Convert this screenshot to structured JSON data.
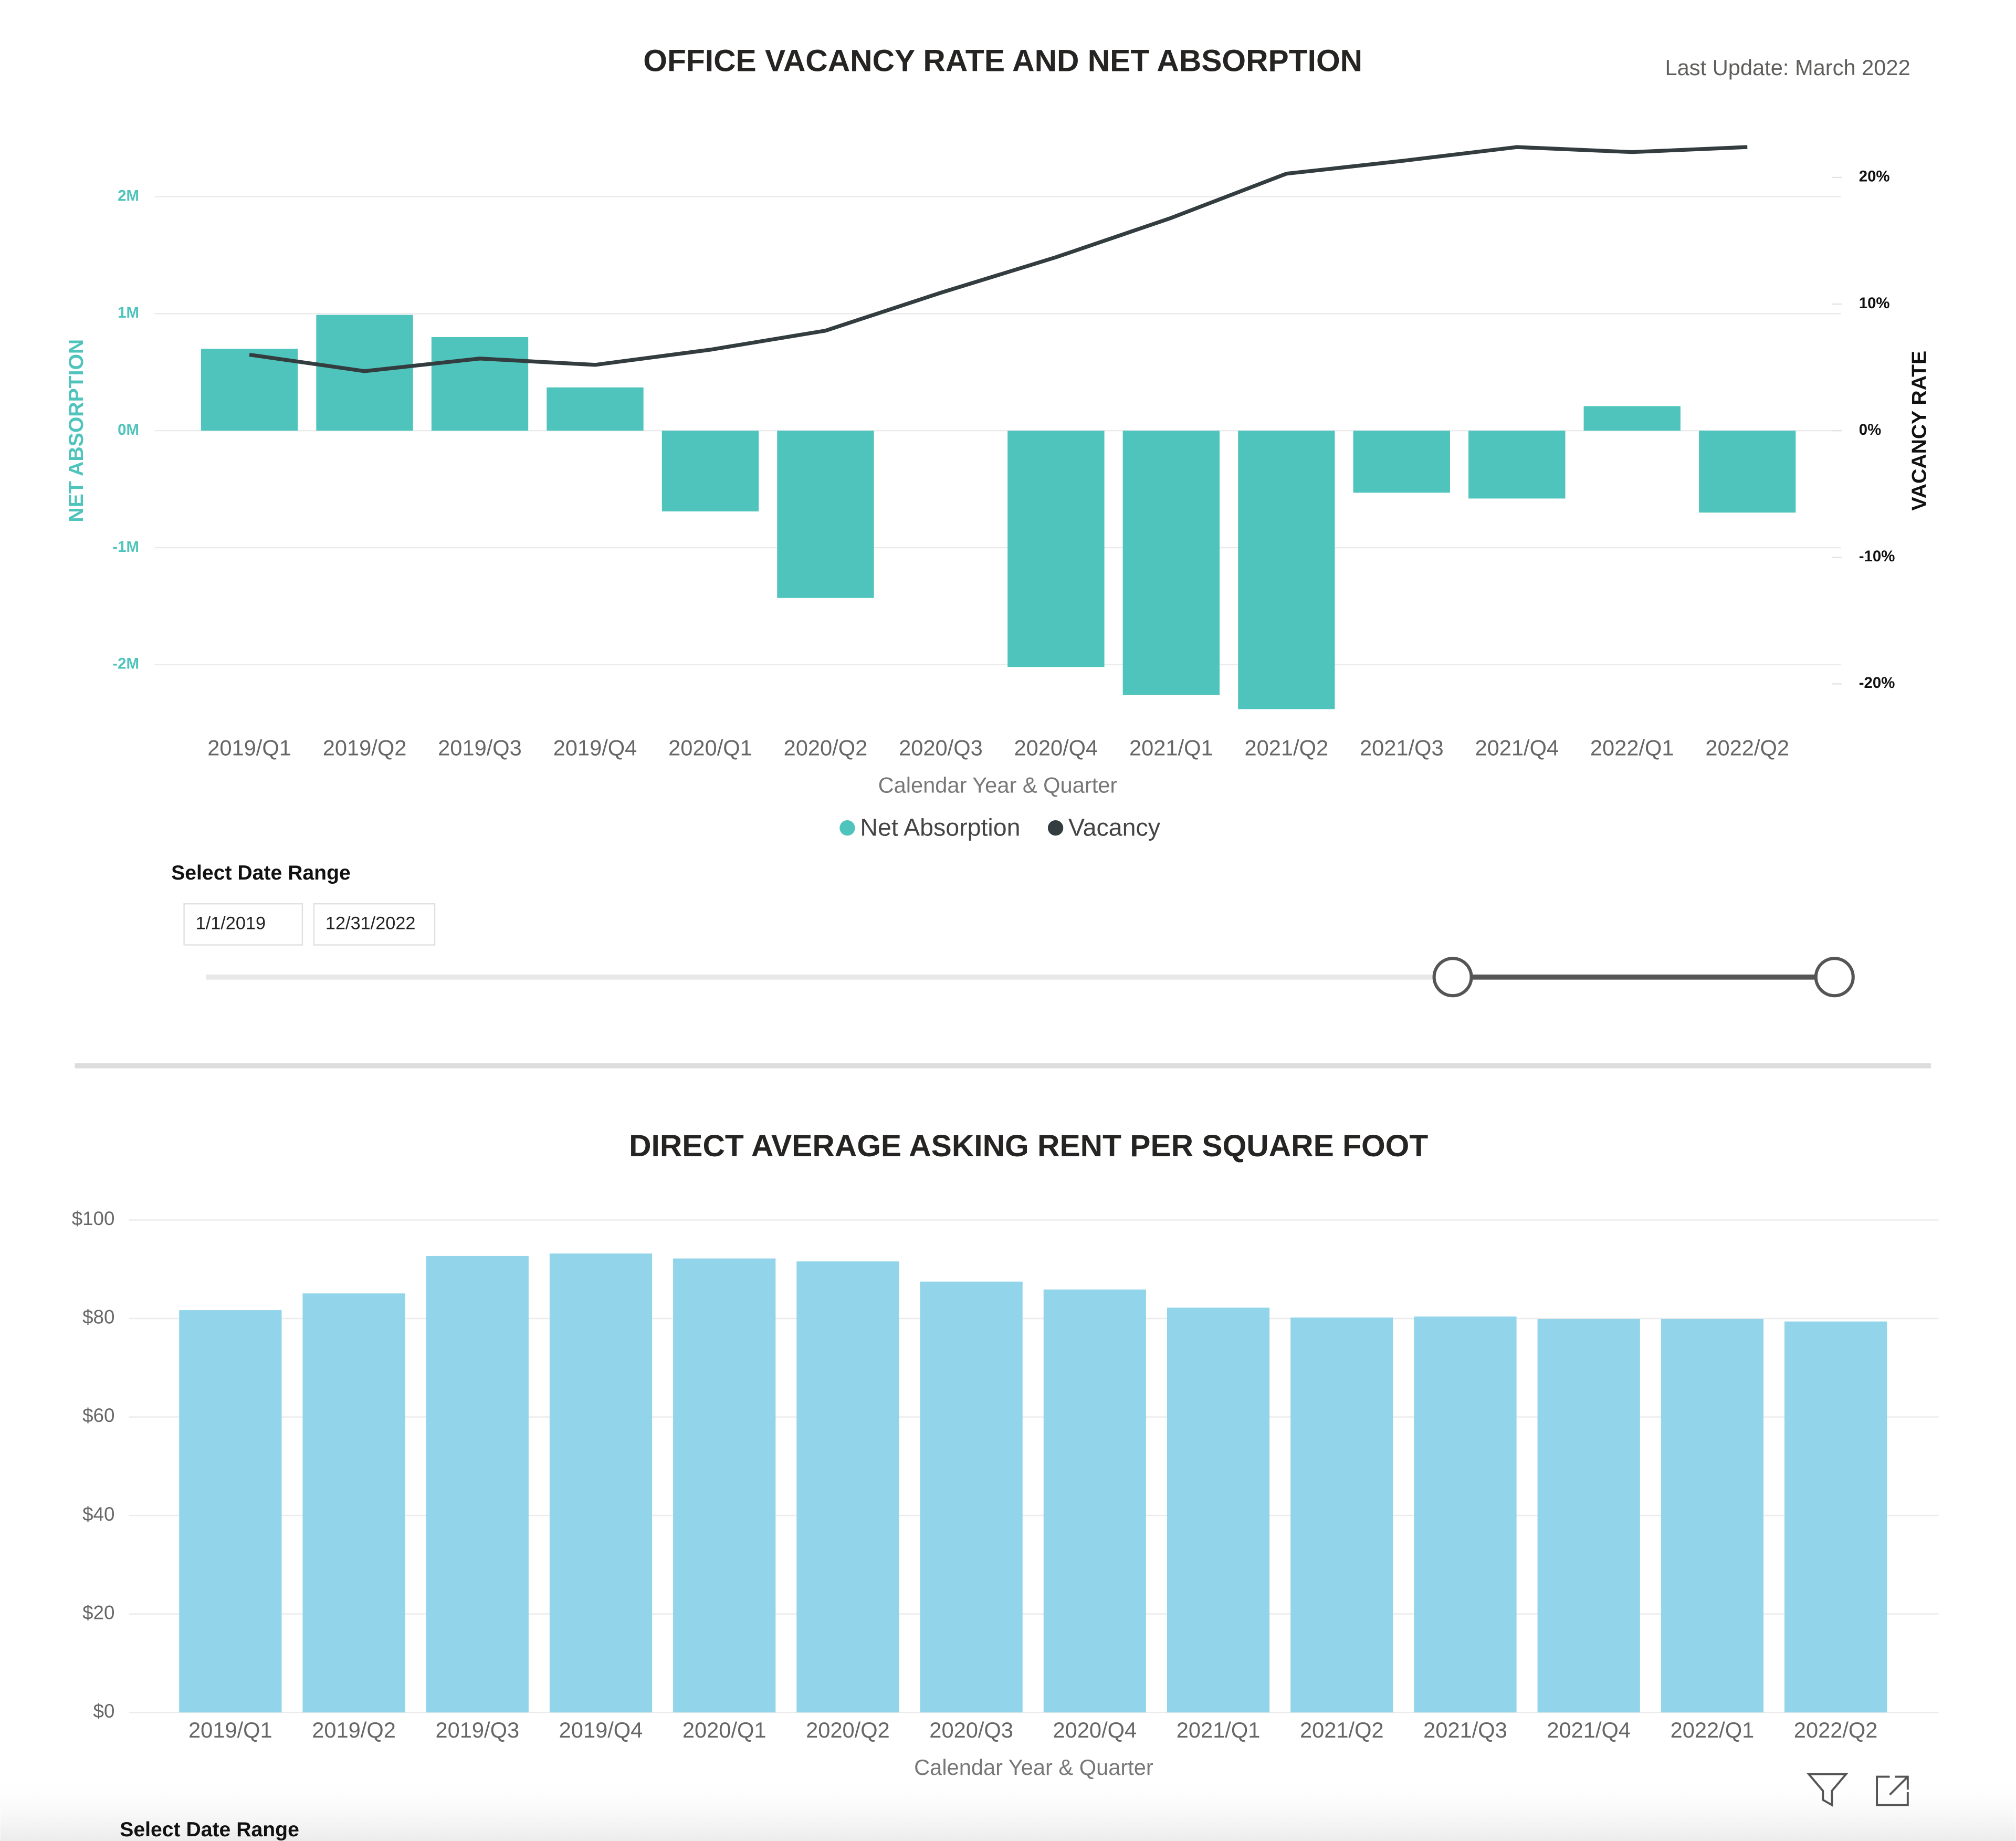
{
  "chart_data": [
    {
      "type": "combo",
      "title": "OFFICE VACANCY RATE AND NET ABSORPTION",
      "annotation": "Last Update:  March 2022",
      "x_label": "Calendar Year & Quarter",
      "y_label": "NET ABSORPTION",
      "y2_label": "VACANCY RATE",
      "categories": [
        "2019/Q1",
        "2019/Q2",
        "2019/Q3",
        "2019/Q4",
        "2020/Q1",
        "2020/Q2",
        "2020/Q3",
        "2020/Q4",
        "2021/Q1",
        "2021/Q2",
        "2021/Q3",
        "2021/Q4",
        "2022/Q1",
        "2022/Q2"
      ],
      "series": [
        {
          "name": "Net Absorption",
          "type": "bar",
          "color": "#4fc4bc",
          "axis": "y",
          "values": [
            700000,
            990000,
            800000,
            370000,
            -690000,
            -1430000,
            null,
            -2020000,
            -2260000,
            -2380000,
            -530000,
            -580000,
            210000,
            -700000
          ]
        },
        {
          "name": "Vacancy",
          "type": "line",
          "color": "#333d3f",
          "axis": "y2",
          "values": [
            6.0,
            4.7,
            5.7,
            5.2,
            6.4,
            7.9,
            10.9,
            13.7,
            16.8,
            20.3,
            21.3,
            22.4,
            22.0,
            22.4
          ]
        }
      ],
      "ylim": [
        -2500000,
        2500000
      ],
      "yticks": [
        {
          "value": -2000000,
          "label": "-2M"
        },
        {
          "value": -1000000,
          "label": "-1M"
        },
        {
          "value": 0,
          "label": "0M"
        },
        {
          "value": 1000000,
          "label": "1M"
        },
        {
          "value": 2000000,
          "label": "2M"
        }
      ],
      "y2lim": [
        -23.1,
        23.1
      ],
      "y2ticks": [
        {
          "value": -20,
          "label": "-20%"
        },
        {
          "value": -10,
          "label": "-10%"
        },
        {
          "value": 0,
          "label": "0%"
        },
        {
          "value": 10,
          "label": "10%"
        },
        {
          "value": 20,
          "label": "20%"
        }
      ],
      "grid": true,
      "legend": "bottom"
    },
    {
      "type": "bar",
      "title": "DIRECT AVERAGE ASKING RENT PER SQUARE FOOT",
      "x_label": "Calendar Year & Quarter",
      "categories": [
        "2019/Q1",
        "2019/Q2",
        "2019/Q3",
        "2019/Q4",
        "2020/Q1",
        "2020/Q2",
        "2020/Q3",
        "2020/Q4",
        "2021/Q1",
        "2021/Q2",
        "2021/Q3",
        "2021/Q4",
        "2022/Q1",
        "2022/Q2"
      ],
      "values": [
        81.7,
        85.1,
        92.7,
        93.2,
        92.2,
        91.6,
        87.5,
        85.9,
        82.2,
        80.2,
        80.4,
        79.9,
        79.9,
        79.4
      ],
      "color": "#92d4ea",
      "ylim": [
        0,
        100
      ],
      "yticks": [
        {
          "value": 0,
          "label": "$0"
        },
        {
          "value": 20,
          "label": "$20"
        },
        {
          "value": 40,
          "label": "$40"
        },
        {
          "value": 60,
          "label": "$60"
        },
        {
          "value": 80,
          "label": "$80"
        },
        {
          "value": 100,
          "label": "$100"
        }
      ],
      "grid": true
    }
  ],
  "slicers": [
    {
      "title": "Select Date Range",
      "start": "1/1/2019",
      "end": "12/31/2022"
    },
    {
      "title": "Select Date Range"
    }
  ]
}
